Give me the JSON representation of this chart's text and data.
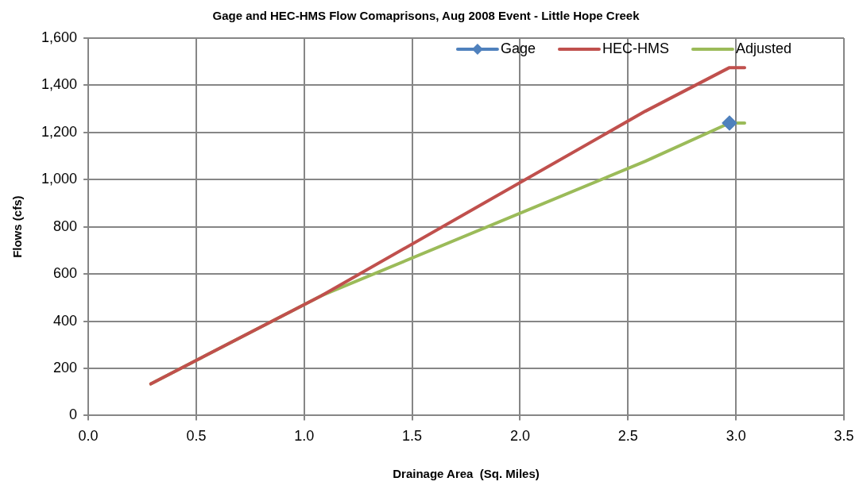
{
  "chart_data": {
    "type": "line",
    "title": "Gage and HEC-HMS Flow Comaprisons, Aug 2008 Event - Little Hope Creek",
    "xlabel": "Drainage Area  (Sq. Miles)",
    "ylabel": "Flows (cfs)",
    "xlim": [
      0,
      3.5
    ],
    "xticks": [
      {
        "value": 0,
        "label": "0.0"
      },
      {
        "value": 0.5,
        "label": "0.5"
      },
      {
        "value": 1,
        "label": "1.0"
      },
      {
        "value": 1.5,
        "label": "1.5"
      },
      {
        "value": 2,
        "label": "2.0"
      },
      {
        "value": 2.5,
        "label": "2.5"
      },
      {
        "value": 3,
        "label": "3.0"
      },
      {
        "value": 3.5,
        "label": "3.5"
      }
    ],
    "ylim": [
      0,
      1600
    ],
    "yticks": [
      {
        "value": 0,
        "label": "0"
      },
      {
        "value": 200,
        "label": "200"
      },
      {
        "value": 400,
        "label": "400"
      },
      {
        "value": 600,
        "label": "600"
      },
      {
        "value": 800,
        "label": "800"
      },
      {
        "value": 1000,
        "label": "1,000"
      },
      {
        "value": 1200,
        "label": "1,200"
      },
      {
        "value": 1400,
        "label": "1,400"
      },
      {
        "value": 1600,
        "label": "1,600"
      }
    ],
    "grid": true,
    "legend": "top right",
    "series": [
      {
        "name": "Gage",
        "color": "#4f81bd",
        "marker": "diamond",
        "x": [
          2.97
        ],
        "values": [
          1240
        ]
      },
      {
        "name": "HEC-HMS",
        "color": "#c0504d",
        "marker": "none",
        "x": [
          0.29,
          1.08,
          2.58,
          2.97,
          3.04
        ],
        "values": [
          134,
          508,
          1290,
          1475,
          1475
        ]
      },
      {
        "name": "Adjusted",
        "color": "#9bbb59",
        "marker": "none",
        "x": [
          0.29,
          1.08,
          2.58,
          2.97,
          3.04
        ],
        "values": [
          134,
          508,
          1078,
          1240,
          1240
        ]
      }
    ]
  }
}
